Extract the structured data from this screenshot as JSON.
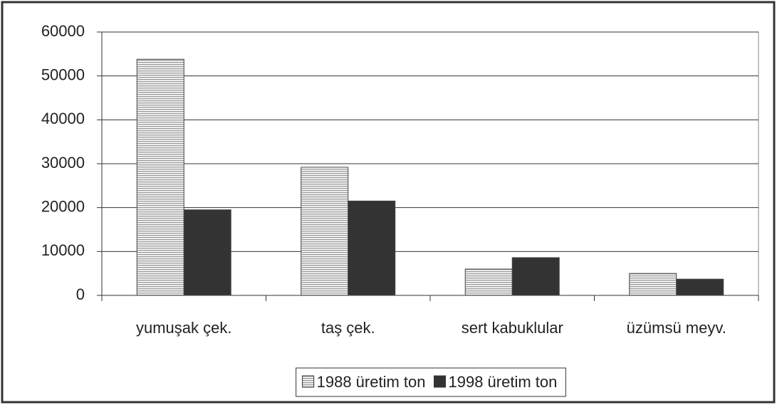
{
  "chart_data": {
    "type": "bar",
    "categories": [
      "yumuşak çek.",
      "taş çek.",
      "sert kabuklular",
      "üzümsü meyv."
    ],
    "series": [
      {
        "name": "1988 üretim ton",
        "color": "#9a9a9a",
        "pattern": "horizontal-lines",
        "values": [
          53800,
          29200,
          6000,
          5000
        ]
      },
      {
        "name": "1998 üretim ton",
        "color": "#333333",
        "values": [
          19500,
          21500,
          8600,
          3700
        ]
      }
    ],
    "ylim": [
      0,
      60000
    ],
    "yticks": [
      0,
      10000,
      20000,
      30000,
      40000,
      50000,
      60000
    ],
    "grid": true,
    "legend": "bottom"
  }
}
